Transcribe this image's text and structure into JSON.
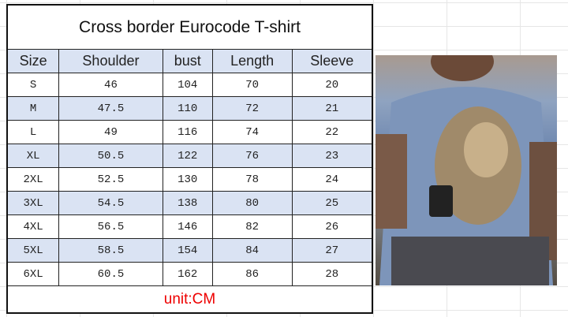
{
  "title": "Cross border Eurocode T-shirt",
  "headers": [
    "Size",
    "Shoulder",
    "bust",
    "Length",
    "Sleeve"
  ],
  "rows": [
    [
      "S",
      "46",
      "104",
      "70",
      "20"
    ],
    [
      "M",
      "47.5",
      "110",
      "72",
      "21"
    ],
    [
      "L",
      "49",
      "116",
      "74",
      "22"
    ],
    [
      "XL",
      "50.5",
      "122",
      "76",
      "23"
    ],
    [
      "2XL",
      "52.5",
      "130",
      "78",
      "24"
    ],
    [
      "3XL",
      "54.5",
      "138",
      "80",
      "25"
    ],
    [
      "4XL",
      "56.5",
      "146",
      "82",
      "26"
    ],
    [
      "5XL",
      "58.5",
      "154",
      "84",
      "27"
    ],
    [
      "6XL",
      "60.5",
      "162",
      "86",
      "28"
    ]
  ],
  "unit": "unit:CM",
  "colors": {
    "header_bg": "#dae3f3",
    "unit_text": "#e00000"
  }
}
